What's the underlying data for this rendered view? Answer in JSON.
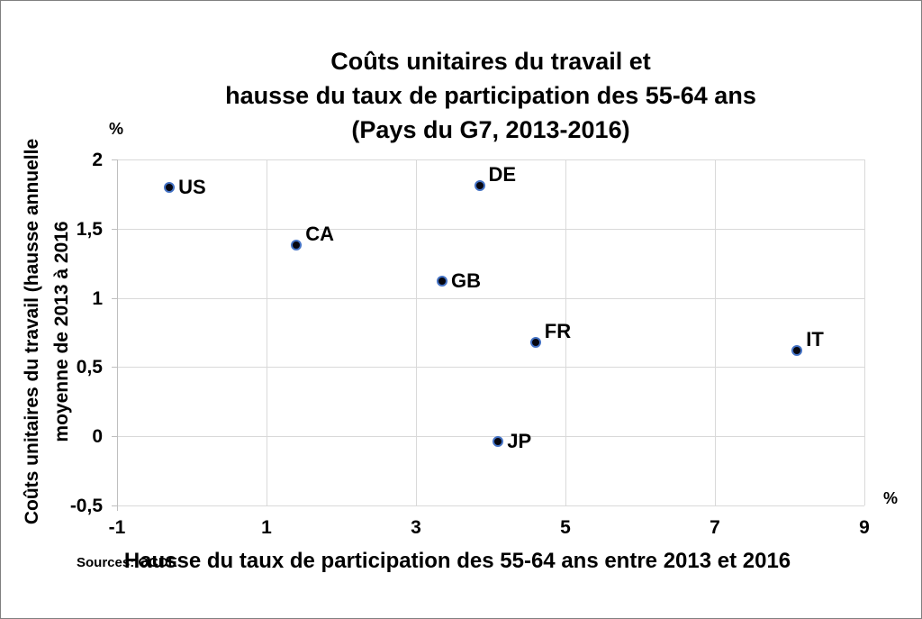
{
  "chart_data": {
    "type": "scatter",
    "title_lines": [
      "Coûts unitaires du travail et",
      "hausse du taux de participation des 55-64 ans",
      "(Pays du G7, 2013-2016)"
    ],
    "x_axis": {
      "label": "Hausse du taux de participation des 55-64 ans entre 2013 et 2016",
      "unit": "%",
      "range": [
        -1,
        9
      ],
      "ticks": [
        -1,
        1,
        3,
        5,
        7,
        9
      ],
      "tick_labels": [
        "-1",
        "1",
        "3",
        "5",
        "7",
        "9"
      ],
      "gridlines": true
    },
    "y_axis": {
      "label_lines": [
        "Coûts unitaires du travail (hausse annuelle",
        "moyenne de 2013 à 2016"
      ],
      "unit": "%",
      "range": [
        -0.5,
        2
      ],
      "ticks": [
        2,
        1.5,
        1,
        0.5,
        0,
        -0.5
      ],
      "tick_labels": [
        "2",
        "1,5",
        "1",
        "0,5",
        "0",
        "-0,5"
      ],
      "gridlines": true
    },
    "points": [
      {
        "label": "US",
        "x": -0.3,
        "y": 1.8,
        "label_pos": "right"
      },
      {
        "label": "CA",
        "x": 1.4,
        "y": 1.38,
        "label_pos": "above-right"
      },
      {
        "label": "DE",
        "x": 3.85,
        "y": 1.81,
        "label_pos": "above-right"
      },
      {
        "label": "GB",
        "x": 3.35,
        "y": 1.12,
        "label_pos": "right"
      },
      {
        "label": "FR",
        "x": 4.6,
        "y": 0.68,
        "label_pos": "above-right"
      },
      {
        "label": "JP",
        "x": 4.1,
        "y": -0.04,
        "label_pos": "right"
      },
      {
        "label": "IT",
        "x": 8.1,
        "y": 0.62,
        "label_pos": "above-right"
      }
    ],
    "source": "Sources: OCDE",
    "legend": "none",
    "colors": {
      "marker_fill": "#06060f",
      "marker_border": "#4472c4",
      "grid": "#d9d9d9",
      "axis": "#bfbfbf",
      "text": "#000000",
      "frame_border": "#808080"
    }
  }
}
